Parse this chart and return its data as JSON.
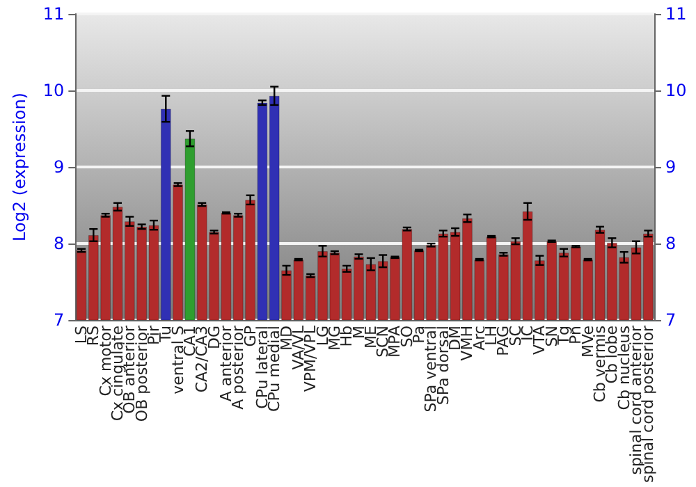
{
  "chart_data": {
    "type": "bar",
    "ylabel": "Log2 (expression)",
    "categories": [
      "LS",
      "RS",
      "Cx motor",
      "Cx cingulate",
      "OB anterior",
      "OB posterior",
      "Pir",
      "Tu",
      "ventral S",
      "CA1",
      "CA2/CA3",
      "DG",
      "A anterior",
      "A posterior",
      "GP",
      "CPu lateral",
      "CPu medial",
      "MD",
      "VA/VL",
      "VPM/VPL",
      "LG",
      "MG",
      "Hb",
      "M",
      "ME",
      "SCN",
      "MPA",
      "SO",
      "Pa",
      "SPa ventral",
      "SPa dorsal",
      "DM",
      "VMH",
      "Arc",
      "LH",
      "PAG",
      "SC",
      "IC",
      "VTA",
      "SN",
      "Tg",
      "Pn",
      "MVe",
      "Cb vermis",
      "Cb lobe",
      "Cb nucleus",
      "spinal cord anterior",
      "spinal cord posterior"
    ],
    "values": [
      7.91,
      8.11,
      8.37,
      8.48,
      8.29,
      8.22,
      8.24,
      9.76,
      8.77,
      9.37,
      8.51,
      8.15,
      8.4,
      8.37,
      8.57,
      9.84,
      9.93,
      7.65,
      7.79,
      7.58,
      7.9,
      7.88,
      7.67,
      7.83,
      7.73,
      7.77,
      7.82,
      8.19,
      7.91,
      7.98,
      8.13,
      8.15,
      8.33,
      7.79,
      8.09,
      7.86,
      8.03,
      8.42,
      7.78,
      8.03,
      7.88,
      7.96,
      7.79,
      8.18,
      8.01,
      7.82,
      7.95,
      8.13
    ],
    "errors": [
      0.02,
      0.08,
      0.02,
      0.05,
      0.06,
      0.03,
      0.06,
      0.17,
      0.02,
      0.1,
      0.02,
      0.02,
      0.01,
      0.02,
      0.06,
      0.03,
      0.12,
      0.06,
      0.01,
      0.02,
      0.07,
      0.02,
      0.04,
      0.03,
      0.08,
      0.08,
      0.01,
      0.02,
      0.01,
      0.02,
      0.04,
      0.05,
      0.05,
      0.01,
      0.01,
      0.02,
      0.04,
      0.11,
      0.06,
      0.01,
      0.05,
      0.01,
      0.01,
      0.04,
      0.06,
      0.07,
      0.08,
      0.04
    ],
    "colors": [
      "#b22b2b",
      "#b22b2b",
      "#b22b2b",
      "#b22b2b",
      "#b22b2b",
      "#b22b2b",
      "#b22b2b",
      "#3030b4",
      "#b22b2b",
      "#2f9e2f",
      "#b22b2b",
      "#b22b2b",
      "#b22b2b",
      "#b22b2b",
      "#b22b2b",
      "#3030b4",
      "#3030b4",
      "#b22b2b",
      "#b22b2b",
      "#b22b2b",
      "#b22b2b",
      "#b22b2b",
      "#b22b2b",
      "#b22b2b",
      "#b22b2b",
      "#b22b2b",
      "#b22b2b",
      "#b22b2b",
      "#b22b2b",
      "#b22b2b",
      "#b22b2b",
      "#b22b2b",
      "#b22b2b",
      "#b22b2b",
      "#b22b2b",
      "#b22b2b",
      "#b22b2b",
      "#b22b2b",
      "#b22b2b",
      "#b22b2b",
      "#b22b2b",
      "#b22b2b",
      "#b22b2b",
      "#b22b2b",
      "#b22b2b",
      "#b22b2b",
      "#b22b2b",
      "#b22b2b"
    ],
    "ylim": [
      7,
      11
    ],
    "yticks": [
      7,
      8,
      9,
      10,
      11
    ],
    "y2lim": [
      7,
      11
    ],
    "y2ticks": [
      7,
      8,
      9,
      10,
      11
    ],
    "grid": "y"
  }
}
